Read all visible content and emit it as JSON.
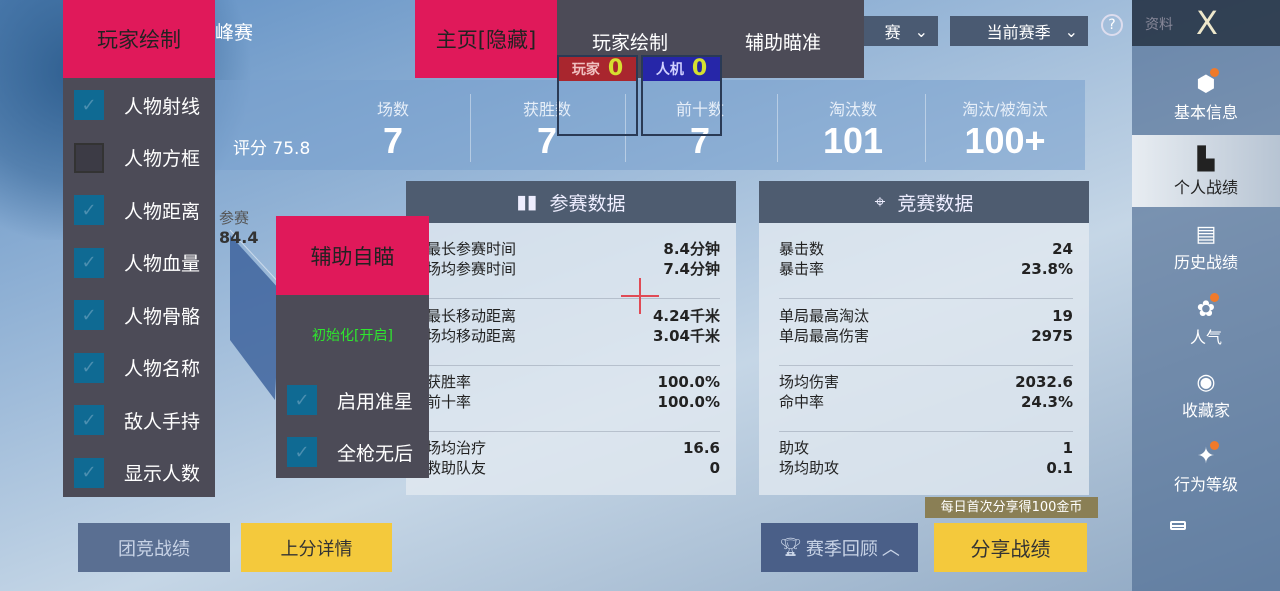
{
  "mod_menu": {
    "player_draw_title": "玩家绘制",
    "items": [
      {
        "label": "人物射线",
        "checked": true
      },
      {
        "label": "人物方框",
        "checked": false
      },
      {
        "label": "人物距离",
        "checked": true
      },
      {
        "label": "人物血量",
        "checked": true
      },
      {
        "label": "人物骨骼",
        "checked": true
      },
      {
        "label": "人物名称",
        "checked": true
      },
      {
        "label": "敌人手持",
        "checked": true
      },
      {
        "label": "显示人数",
        "checked": true
      }
    ],
    "tabs": {
      "home": "主页[隐藏]",
      "player_draw": "玩家绘制",
      "aim_assist": "辅助瞄准"
    },
    "counters": {
      "player_label": "玩家",
      "player_count": "0",
      "bot_label": "人机",
      "bot_count": "0"
    },
    "aimbot": {
      "title": "辅助自瞄",
      "status": "初始化[开启]",
      "items": [
        {
          "label": "启用准星",
          "checked": true
        },
        {
          "label": "全枪无后",
          "checked": true
        }
      ]
    }
  },
  "header": {
    "mode_fragment": "峰赛",
    "mode_dropdown": "赛",
    "season_dropdown": "当前赛季",
    "help": "?",
    "profile_label": "资料",
    "close": "X"
  },
  "stats": {
    "rating": "评分 75.8",
    "items": [
      {
        "label": "场数",
        "value": "7"
      },
      {
        "label": "获胜数",
        "value": "7"
      },
      {
        "label": "前十数",
        "value": "7"
      },
      {
        "label": "淘汰数",
        "value": "101"
      },
      {
        "label": "淘汰/被淘汰",
        "value": "100+"
      }
    ]
  },
  "radar": {
    "label": "参赛",
    "value": "84.4"
  },
  "participation": {
    "title": "参赛数据",
    "groups": [
      [
        {
          "k": "最长参赛时间",
          "v": "8.4分钟"
        },
        {
          "k": "场均参赛时间",
          "v": "7.4分钟"
        }
      ],
      [
        {
          "k": "最长移动距离",
          "v": "4.24千米"
        },
        {
          "k": "场均移动距离",
          "v": "3.04千米"
        }
      ],
      [
        {
          "k": "获胜率",
          "v": "100.0%"
        },
        {
          "k": "前十率",
          "v": "100.0%"
        }
      ],
      [
        {
          "k": "场均治疗",
          "v": "16.6"
        },
        {
          "k": "救助队友",
          "v": "0"
        }
      ]
    ]
  },
  "competition": {
    "title": "竞赛数据",
    "groups": [
      [
        {
          "k": "暴击数",
          "v": "24"
        },
        {
          "k": "暴击率",
          "v": "23.8%"
        }
      ],
      [
        {
          "k": "单局最高淘汰",
          "v": "19"
        },
        {
          "k": "单局最高伤害",
          "v": "2975"
        }
      ],
      [
        {
          "k": "场均伤害",
          "v": "2032.6"
        },
        {
          "k": "命中率",
          "v": "24.3%"
        }
      ],
      [
        {
          "k": "助攻",
          "v": "1"
        },
        {
          "k": "场均助攻",
          "v": "0.1"
        }
      ]
    ]
  },
  "buttons": {
    "team": "团竞战绩",
    "rank": "上分详情",
    "season_review": "赛季回顾",
    "share": "分享战绩",
    "share_tip": "每日首次分享得100金币"
  },
  "sidebar": {
    "items": [
      {
        "label": "基本信息",
        "dot": true
      },
      {
        "label": "个人战绩",
        "active": true
      },
      {
        "label": "历史战绩"
      },
      {
        "label": "人气",
        "dot": true
      },
      {
        "label": "收藏家"
      },
      {
        "label": "行为等级",
        "dot": true
      }
    ]
  },
  "colors": {
    "menu_accent": "#e0195a",
    "menu_bg": "#4c4b57",
    "checkbox": "#0f6a93",
    "status_green": "#2ee62e",
    "yellow_button": "#f4c93c"
  }
}
